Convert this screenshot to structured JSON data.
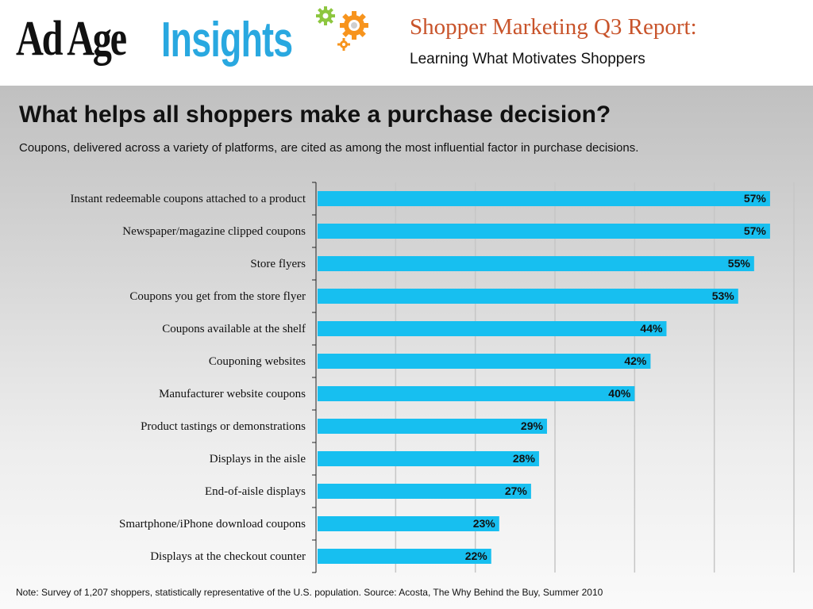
{
  "header": {
    "logo_part1": "Ad Age",
    "logo_part2": "Insights",
    "report_title": "Shopper Marketing Q3 Report:",
    "report_subtitle": "Learning What Motivates Shoppers"
  },
  "slide": {
    "question": "What helps all shoppers make a purchase decision?",
    "description": "Coupons, delivered across a variety of platforms, are cited as among the most influential factor in purchase decisions."
  },
  "footnote": "Note: Survey of 1,207 shoppers, statistically representative of the U.S. population. Source: Acosta, The Why Behind the Buy, Summer 2010",
  "colors": {
    "bar": "#17bff0",
    "title_accent": "#c8532a",
    "insights_blue": "#29a8e0",
    "gear_green": "#8dc63f",
    "gear_orange": "#f7941d"
  },
  "icons": [
    "gear-green-icon",
    "gear-orange-icon",
    "gear-small-icon"
  ],
  "chart_data": {
    "type": "bar",
    "orientation": "horizontal",
    "categories": [
      "Instant redeemable coupons attached to a product",
      "Newspaper/magazine clipped coupons",
      "Store flyers",
      "Coupons you get from the store flyer",
      "Coupons available at the shelf",
      "Couponing websites",
      "Manufacturer website coupons",
      "Product tastings or demonstrations",
      "Displays in the aisle",
      "End-of-aisle displays",
      "Smartphone/iPhone download coupons",
      "Displays at the checkout counter"
    ],
    "values": [
      57,
      57,
      55,
      53,
      44,
      42,
      40,
      29,
      28,
      27,
      23,
      22
    ],
    "value_labels": [
      "57%",
      "57%",
      "55%",
      "53%",
      "44%",
      "42%",
      "40%",
      "29%",
      "28%",
      "27%",
      "23%",
      "22%"
    ],
    "xlim": [
      0,
      60
    ],
    "grid": true,
    "legend": "none"
  }
}
